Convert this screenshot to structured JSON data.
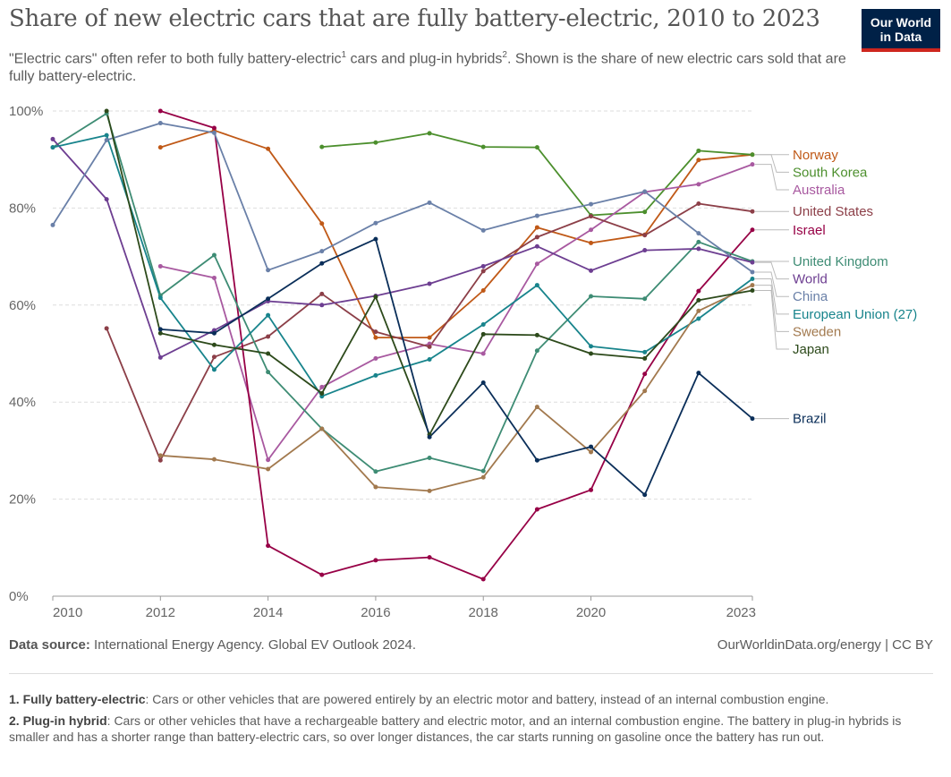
{
  "header": {
    "title": "Share of new electric cars that are fully battery-electric, 2010 to 2023",
    "subtitle_part1": "\"Electric cars\" often refer to both fully battery-electric",
    "subtitle_sup1": "1",
    "subtitle_part2": " cars and plug-in hybrids",
    "subtitle_sup2": "2",
    "subtitle_part3": ". Shown is the share of new electric cars sold that are fully battery-electric.",
    "logo_line1": "Our World",
    "logo_line2": "in Data"
  },
  "footer": {
    "source_label": "Data source:",
    "source_text": " International Energy Agency. Global EV Outlook 2024.",
    "license": "OurWorldinData.org/energy | CC BY",
    "note1_label": "1. Fully battery-electric",
    "note1_text": ": Cars or other vehicles that are powered entirely by an electric motor and battery, instead of an internal combustion engine.",
    "note2_label": "2. Plug-in hybrid",
    "note2_text": ": Cars or other vehicles that have a rechargeable battery and electric motor, and an internal combustion engine. The battery in plug-in hybrids is smaller and has a shorter range than battery-electric cars, so over longer distances, the car starts running on gasoline once the battery has run out."
  },
  "chart_data": {
    "type": "line",
    "title": "Share of new electric cars that are fully battery-electric, 2010 to 2023",
    "xlabel": "",
    "ylabel": "",
    "xlim": [
      2010,
      2023
    ],
    "ylim": [
      0,
      100
    ],
    "x_ticks": [
      2010,
      2012,
      2014,
      2016,
      2018,
      2020,
      2023
    ],
    "y_ticks": [
      0,
      20,
      40,
      60,
      80,
      100
    ],
    "y_tick_labels": [
      "0%",
      "20%",
      "40%",
      "60%",
      "80%",
      "100%"
    ],
    "grid": "horizontal dashed",
    "legend": "right, labels at line ends",
    "series": [
      {
        "name": "Norway",
        "color": "#c05917",
        "x": [
          2012,
          2013,
          2014,
          2015,
          2016,
          2017,
          2018,
          2019,
          2020,
          2021,
          2022,
          2023
        ],
        "values": [
          92.5,
          96,
          92.2,
          76.8,
          53.3,
          53.3,
          63,
          76,
          72.8,
          74.5,
          89.9,
          91
        ]
      },
      {
        "name": "South Korea",
        "color": "#4c8f2d",
        "x": [
          2015,
          2016,
          2017,
          2018,
          2019,
          2020,
          2021,
          2022,
          2023
        ],
        "values": [
          92.6,
          93.5,
          95.4,
          92.6,
          92.5,
          78.5,
          79.2,
          91.8,
          91
        ]
      },
      {
        "name": "Australia",
        "color": "#a859a0",
        "x": [
          2012,
          2013,
          2014,
          2015,
          2016,
          2017,
          2018,
          2019,
          2020,
          2021,
          2022,
          2023
        ],
        "values": [
          68,
          65.6,
          28.1,
          43.1,
          49,
          52,
          50,
          68.5,
          75.5,
          83.3,
          84.9,
          89
        ]
      },
      {
        "name": "United States",
        "color": "#8c3f48",
        "x": [
          2011,
          2012,
          2013,
          2014,
          2015,
          2016,
          2017,
          2018,
          2019,
          2020,
          2021,
          2022,
          2023
        ],
        "values": [
          55.2,
          28,
          49.3,
          53.5,
          62.3,
          54.5,
          51.4,
          67,
          74,
          78.3,
          74.4,
          80.9,
          79.3
        ]
      },
      {
        "name": "Israel",
        "color": "#970046",
        "x": [
          2012,
          2013,
          2014,
          2015,
          2016,
          2017,
          2018,
          2019,
          2020,
          2021,
          2022,
          2023
        ],
        "values": [
          100,
          96.5,
          10.4,
          4.4,
          7.4,
          8,
          3.5,
          17.9,
          21.9,
          45.8,
          62.9,
          75.5
        ]
      },
      {
        "name": "United Kingdom",
        "color": "#3e8c74",
        "x": [
          2010,
          2011,
          2012,
          2013,
          2014,
          2015,
          2016,
          2017,
          2018,
          2019,
          2020,
          2021,
          2022,
          2023
        ],
        "values": [
          92.5,
          99.5,
          62,
          70.3,
          46.2,
          34.5,
          25.7,
          28.5,
          25.8,
          50.6,
          61.8,
          61.3,
          73,
          69
        ]
      },
      {
        "name": "World",
        "color": "#6d3e91",
        "x": [
          2010,
          2011,
          2012,
          2013,
          2014,
          2015,
          2016,
          2017,
          2018,
          2019,
          2020,
          2021,
          2022,
          2023
        ],
        "values": [
          94.2,
          81.8,
          49.2,
          54.8,
          60.8,
          60,
          61.9,
          64.4,
          68,
          72.1,
          67.1,
          71.3,
          71.6,
          68.8
        ]
      },
      {
        "name": "China",
        "color": "#6a80a8",
        "x": [
          2010,
          2011,
          2012,
          2013,
          2014,
          2015,
          2016,
          2017,
          2018,
          2019,
          2020,
          2021,
          2022,
          2023
        ],
        "values": [
          76.5,
          94,
          97.5,
          95.5,
          67.2,
          71.1,
          76.9,
          81.1,
          75.4,
          78.4,
          80.8,
          83.4,
          74.8,
          66.8
        ]
      },
      {
        "name": "European Union (27)",
        "color": "#18848c",
        "x": [
          2010,
          2011,
          2012,
          2013,
          2014,
          2015,
          2016,
          2017,
          2018,
          2019,
          2020,
          2021,
          2022,
          2023
        ],
        "values": [
          92.5,
          95,
          61.5,
          46.7,
          57.9,
          41.2,
          45.5,
          48.8,
          56,
          64.1,
          51.5,
          50.3,
          57.2,
          65.4
        ]
      },
      {
        "name": "Sweden",
        "color": "#a2794e",
        "x": [
          2012,
          2013,
          2014,
          2015,
          2016,
          2017,
          2018,
          2019,
          2020,
          2021,
          2022,
          2023
        ],
        "values": [
          29,
          28.2,
          26.2,
          34.5,
          22.5,
          21.7,
          24.5,
          39,
          29.7,
          42.3,
          58.8,
          64.1
        ]
      },
      {
        "name": "Japan",
        "color": "#2d4a1b",
        "x": [
          2011,
          2012,
          2013,
          2014,
          2015,
          2016,
          2017,
          2018,
          2019,
          2020,
          2021,
          2022,
          2023
        ],
        "values": [
          100,
          54.2,
          51.8,
          50,
          41.8,
          61.7,
          33.3,
          54,
          53.8,
          50,
          49,
          61,
          63
        ]
      },
      {
        "name": "Brazil",
        "color": "#0a2e59",
        "x": [
          2012,
          2013,
          2014,
          2015,
          2016,
          2017,
          2018,
          2019,
          2020,
          2021,
          2022,
          2023
        ],
        "values": [
          55,
          54.2,
          61.3,
          68.6,
          73.6,
          32.8,
          44,
          28,
          30.8,
          20.9,
          46,
          36.6
        ]
      }
    ]
  }
}
